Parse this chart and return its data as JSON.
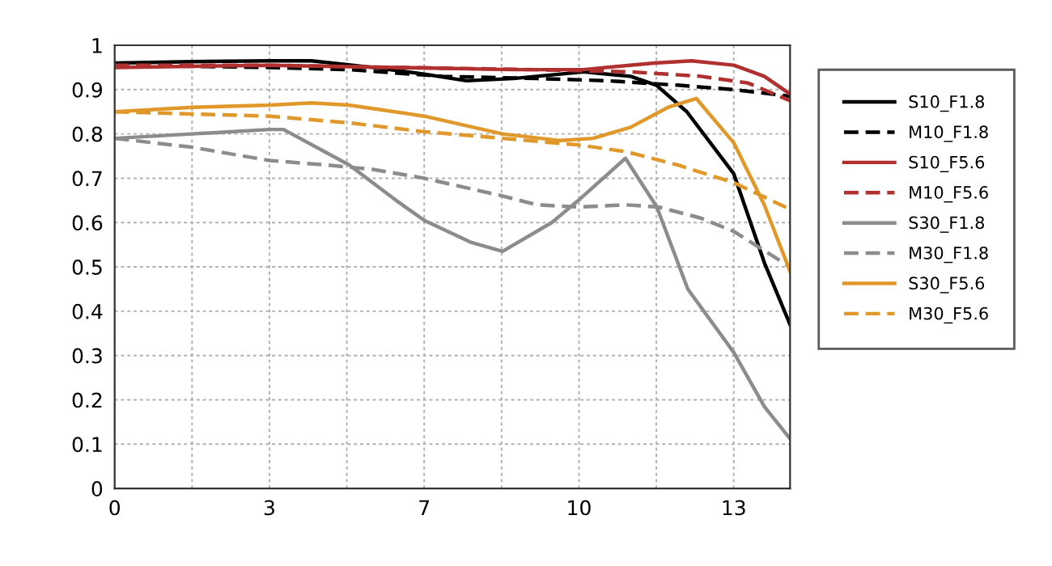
{
  "chart_data": {
    "type": "line",
    "xlim": [
      0,
      14.4
    ],
    "ylim": [
      0,
      1
    ],
    "xticks": [
      0,
      {
        "value": 1.65,
        "label": null
      },
      {
        "value": 3.3,
        "label": "3"
      },
      {
        "value": 4.95,
        "label": null
      },
      {
        "value": 6.6,
        "label": "7"
      },
      {
        "value": 8.25,
        "label": null
      },
      {
        "value": 9.9,
        "label": "10"
      },
      {
        "value": 11.55,
        "label": null
      },
      {
        "value": 13.2,
        "label": "13"
      }
    ],
    "yticks": [
      0,
      0.1,
      0.2,
      0.3,
      0.4,
      0.5,
      0.6,
      0.7,
      0.8,
      0.9,
      1
    ],
    "grid": true,
    "legend": "right",
    "marker": "none",
    "series": [
      {
        "name": "S10_F1.8",
        "color": "#000000",
        "line_style": "solid",
        "x": [
          0,
          1.65,
          3.3,
          4.2,
          5.5,
          6.6,
          7.5,
          8.5,
          10,
          11,
          11.55,
          12.2,
          13.2,
          13.85,
          14.4
        ],
        "values": [
          0.96,
          0.963,
          0.965,
          0.965,
          0.95,
          0.935,
          0.92,
          0.925,
          0.94,
          0.93,
          0.91,
          0.85,
          0.71,
          0.51,
          0.37
        ]
      },
      {
        "name": "M10_F1.8",
        "color": "#000000",
        "line_style": "dashed",
        "x": [
          0,
          3.3,
          5,
          7,
          9,
          10.5,
          12,
          13.2,
          14.4
        ],
        "values": [
          0.955,
          0.95,
          0.945,
          0.93,
          0.925,
          0.92,
          0.91,
          0.9,
          0.885
        ]
      },
      {
        "name": "S10_F5.6",
        "color": "#b03030",
        "line_style": "solid",
        "x": [
          0,
          3.3,
          6,
          8.5,
          10,
          11.5,
          12.3,
          13.2,
          13.85,
          14.4
        ],
        "values": [
          0.95,
          0.955,
          0.95,
          0.945,
          0.945,
          0.96,
          0.965,
          0.955,
          0.93,
          0.89
        ]
      },
      {
        "name": "M10_F5.6",
        "color": "#b03030",
        "line_style": "dashed",
        "x": [
          0,
          3.3,
          6,
          9,
          11,
          12.5,
          13.5,
          14.4
        ],
        "values": [
          0.955,
          0.955,
          0.95,
          0.945,
          0.94,
          0.93,
          0.915,
          0.875
        ]
      },
      {
        "name": "S30_F1.8",
        "color": "#8c8c8c",
        "line_style": "solid",
        "x": [
          0,
          1.65,
          3.3,
          3.6,
          5,
          6,
          6.6,
          7.58,
          8.27,
          9.32,
          9.92,
          10.89,
          11.56,
          12.22,
          13.2,
          13.85,
          14.4
        ],
        "values": [
          0.79,
          0.8,
          0.81,
          0.81,
          0.73,
          0.65,
          0.605,
          0.556,
          0.535,
          0.6,
          0.653,
          0.745,
          0.635,
          0.45,
          0.307,
          0.185,
          0.112
        ]
      },
      {
        "name": "M30_F1.8",
        "color": "#8c8c8c",
        "line_style": "dashed",
        "x": [
          0,
          1.65,
          3.3,
          4.5,
          5.5,
          6.6,
          8.27,
          9,
          9.9,
          10.9,
          11.6,
          12.5,
          13.2,
          14.4
        ],
        "values": [
          0.79,
          0.77,
          0.74,
          0.73,
          0.72,
          0.7,
          0.66,
          0.64,
          0.635,
          0.64,
          0.635,
          0.61,
          0.58,
          0.5
        ]
      },
      {
        "name": "S30_F5.6",
        "color": "#e0982a",
        "line_style": "solid",
        "x": [
          0,
          1.65,
          3.3,
          4.2,
          5,
          6.6,
          8.27,
          9.5,
          10.2,
          11,
          11.8,
          12.4,
          13.2,
          13.85,
          14.4
        ],
        "values": [
          0.85,
          0.86,
          0.865,
          0.87,
          0.865,
          0.84,
          0.8,
          0.785,
          0.79,
          0.815,
          0.86,
          0.88,
          0.78,
          0.64,
          0.49
        ]
      },
      {
        "name": "M30_F5.6",
        "color": "#e0982a",
        "line_style": "dashed",
        "x": [
          0,
          1.65,
          3.3,
          5,
          6.6,
          8.27,
          9.9,
          10.9,
          12,
          13.2,
          14.4
        ],
        "values": [
          0.85,
          0.845,
          0.84,
          0.825,
          0.805,
          0.79,
          0.775,
          0.76,
          0.73,
          0.69,
          0.63
        ]
      }
    ]
  }
}
